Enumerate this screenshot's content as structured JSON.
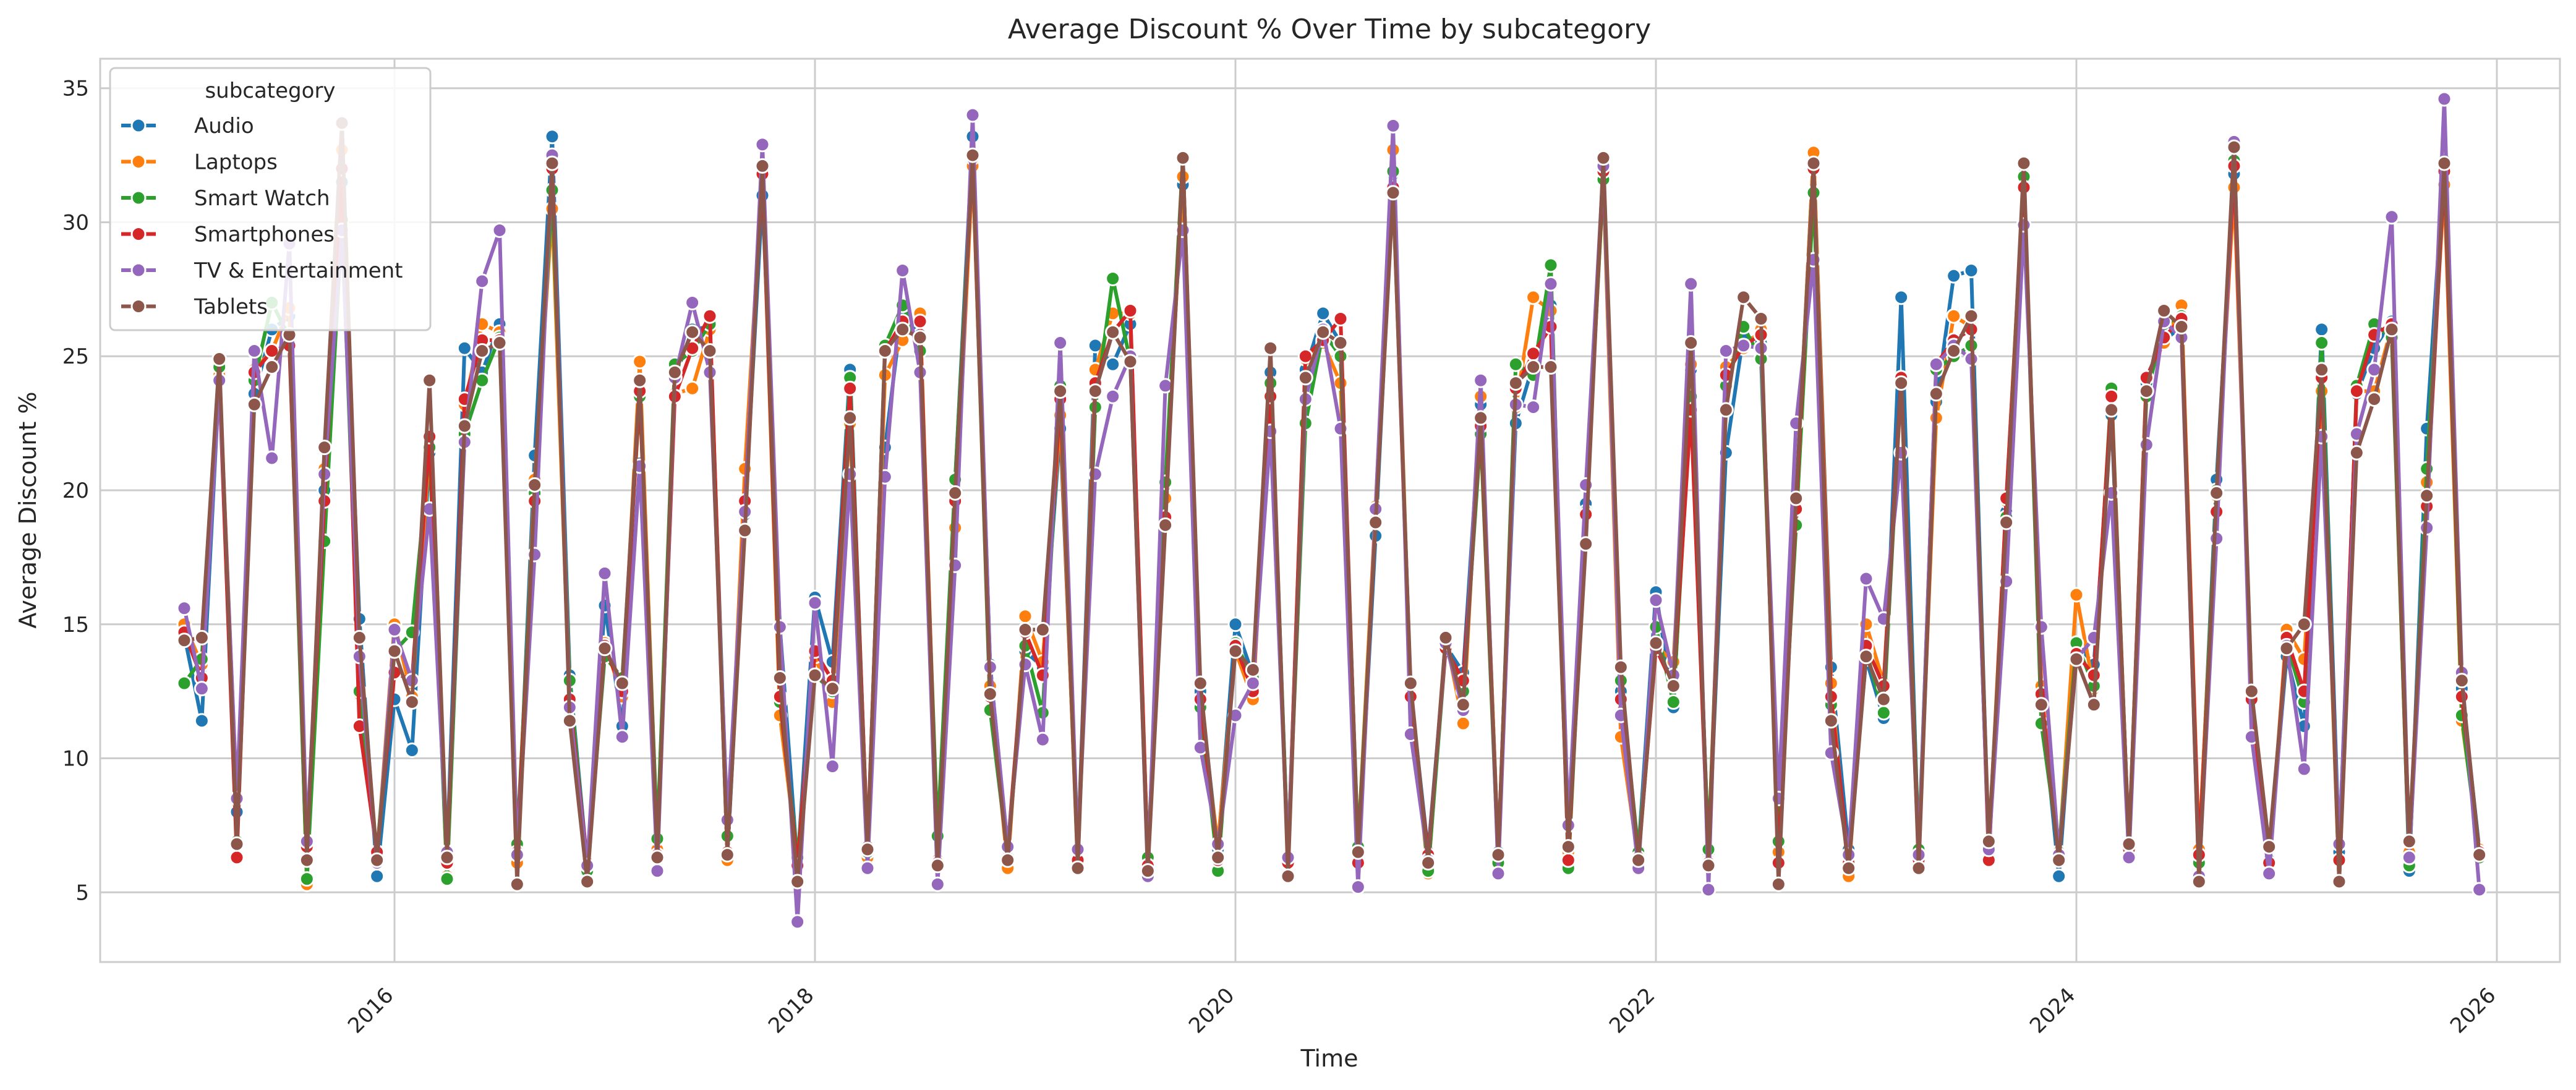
{
  "chart_data": {
    "type": "line",
    "title": "Average Discount % Over Time by subcategory",
    "xlabel": "Time",
    "ylabel": "Average Discount %",
    "xlim": [
      2014.6,
      2026.3
    ],
    "ylim": [
      2.4,
      36.1
    ],
    "x_ticks": [
      2016,
      2018,
      2020,
      2022,
      2024,
      2026
    ],
    "y_ticks": [
      5,
      10,
      15,
      20,
      25,
      30,
      35
    ],
    "grid": true,
    "legend": {
      "title": "subcategory",
      "position": "top-left"
    },
    "start_year": 2015,
    "series": [
      {
        "name": "Audio",
        "color": "#1f77b4",
        "values": [
          14.6,
          11.4,
          24.2,
          8.0,
          23.6,
          26.0,
          26.5,
          6.7,
          20.0,
          31.5,
          15.2,
          5.6,
          12.2,
          10.3,
          21.4,
          6.4,
          25.3,
          24.4,
          26.2,
          6.1,
          21.3,
          33.2,
          13.1,
          6.0,
          15.7,
          11.2,
          21.0,
          6.9,
          24.2,
          26.0,
          26.1,
          6.2,
          19.1,
          31.0,
          14.9,
          6.0,
          16.0,
          13.6,
          24.5,
          6.5,
          21.6,
          26.9,
          25.8,
          6.0,
          20.3,
          33.2,
          13.5,
          6.5,
          14.0,
          13.4,
          22.3,
          6.3,
          25.4,
          24.7,
          26.2,
          6.0,
          20.2,
          31.4,
          12.5,
          6.6,
          15.0,
          13.1,
          24.4,
          6.3,
          24.5,
          26.6,
          25.5,
          6.1,
          18.3,
          31.8,
          12.5,
          6.5,
          14.2,
          13.2,
          23.2,
          6.5,
          22.5,
          24.7,
          26.9,
          6.6,
          19.5,
          32.1,
          12.5,
          6.5,
          16.2,
          11.9,
          24.5,
          6.4,
          21.4,
          25.8,
          25.5,
          6.7,
          19.6,
          32.6,
          13.4,
          6.6,
          13.7,
          11.5,
          27.2,
          6.4,
          23.3,
          28.0,
          28.2,
          6.4,
          19.2,
          31.8,
          12.3,
          5.6,
          14.3,
          13.5,
          22.8,
          6.8,
          24.0,
          25.6,
          26.1,
          6.3,
          20.4,
          31.8,
          12.4,
          6.2,
          13.8,
          11.2,
          26.0,
          6.5,
          23.6,
          25.3,
          26.3,
          5.8,
          22.3,
          32.3,
          12.6,
          6.6
        ]
      },
      {
        "name": "Laptops",
        "color": "#ff7f0e",
        "values": [
          15.0,
          13.5,
          24.3,
          8.4,
          24.5,
          25.2,
          26.8,
          5.3,
          20.8,
          32.7,
          12.4,
          6.3,
          15.0,
          12.3,
          21.6,
          5.6,
          23.2,
          26.2,
          25.9,
          6.1,
          20.4,
          30.5,
          12.0,
          6.1,
          14.3,
          12.3,
          24.8,
          6.6,
          23.6,
          23.8,
          26.0,
          6.2,
          20.8,
          31.8,
          11.6,
          6.2,
          13.8,
          12.1,
          22.5,
          6.3,
          24.3,
          25.6,
          26.6,
          6.2,
          18.6,
          32.1,
          12.7,
          5.9,
          15.3,
          13.6,
          22.8,
          6.0,
          24.5,
          26.6,
          26.6,
          6.1,
          19.7,
          31.7,
          11.9,
          6.8,
          14.0,
          12.2,
          24.0,
          6.2,
          24.9,
          25.5,
          24.0,
          6.7,
          19.4,
          32.7,
          12.3,
          5.7,
          14.5,
          11.3,
          23.5,
          6.4,
          23.1,
          27.2,
          26.7,
          6.5,
          19.2,
          31.6,
          10.8,
          6.2,
          14.2,
          13.6,
          24.7,
          6.2,
          24.6,
          25.3,
          26.0,
          6.5,
          19.5,
          32.6,
          12.8,
          5.6,
          15.0,
          12.8,
          24.1,
          6.5,
          22.7,
          26.5,
          26.1,
          6.6,
          19.6,
          31.6,
          12.7,
          6.3,
          16.1,
          12.6,
          23.5,
          6.7,
          24.2,
          25.5,
          26.9,
          6.6,
          19.8,
          31.3,
          12.4,
          6.0,
          14.8,
          13.7,
          23.7,
          5.4,
          23.7,
          23.7,
          26.1,
          6.5,
          20.3,
          31.4,
          11.4,
          6.6
        ]
      },
      {
        "name": "Smart Watch",
        "color": "#2ca02c",
        "values": [
          12.8,
          13.7,
          24.6,
          6.9,
          24.1,
          27.0,
          25.7,
          5.5,
          18.1,
          30.1,
          12.5,
          6.5,
          14.0,
          14.7,
          21.6,
          5.5,
          22.1,
          24.1,
          25.7,
          6.8,
          19.9,
          31.2,
          12.9,
          5.8,
          13.8,
          13.0,
          23.5,
          7.0,
          24.7,
          25.2,
          26.2,
          7.1,
          19.5,
          32.0,
          12.1,
          6.3,
          13.1,
          12.5,
          24.2,
          6.5,
          25.4,
          26.9,
          25.2,
          7.1,
          20.4,
          32.5,
          11.8,
          6.4,
          14.2,
          11.7,
          23.9,
          6.5,
          23.1,
          27.9,
          24.8,
          6.3,
          20.3,
          32.4,
          11.9,
          5.8,
          14.3,
          13.0,
          24.0,
          6.3,
          22.5,
          25.9,
          25.0,
          6.7,
          18.8,
          31.9,
          12.4,
          5.8,
          14.1,
          12.5,
          22.1,
          6.1,
          24.7,
          24.3,
          28.4,
          5.9,
          19.2,
          31.6,
          12.9,
          6.5,
          14.9,
          12.1,
          23.5,
          6.6,
          23.9,
          26.1,
          24.9,
          6.9,
          18.7,
          31.1,
          12.0,
          6.1,
          14.0,
          11.7,
          24.2,
          6.6,
          24.5,
          25.0,
          25.4,
          6.5,
          19.0,
          31.7,
          11.3,
          6.5,
          14.3,
          12.7,
          23.8,
          6.5,
          23.5,
          26.2,
          26.5,
          6.1,
          20.0,
          32.3,
          12.3,
          6.0,
          14.3,
          12.1,
          25.5,
          5.4,
          23.9,
          26.2,
          25.7,
          6.0,
          20.8,
          32.2,
          11.6,
          6.3
        ]
      },
      {
        "name": "Smartphones",
        "color": "#d62728",
        "values": [
          14.7,
          13.0,
          24.1,
          6.3,
          24.4,
          25.2,
          25.4,
          6.7,
          19.6,
          32.0,
          11.2,
          6.5,
          13.2,
          12.9,
          22.0,
          6.1,
          23.4,
          25.6,
          25.6,
          6.5,
          19.6,
          32.0,
          12.2,
          6.1,
          14.2,
          12.5,
          23.7,
          6.4,
          23.5,
          25.3,
          26.5,
          6.5,
          19.6,
          31.8,
          12.3,
          6.0,
          14.0,
          12.9,
          23.8,
          6.7,
          25.2,
          26.3,
          26.3,
          6.1,
          19.6,
          32.4,
          12.3,
          6.6,
          14.7,
          13.1,
          23.4,
          6.2,
          24.0,
          25.9,
          26.7,
          6.0,
          19.0,
          32.4,
          12.2,
          6.2,
          14.2,
          12.5,
          23.5,
          6.1,
          25.0,
          25.6,
          26.4,
          6.1,
          18.9,
          31.3,
          12.3,
          6.4,
          14.1,
          12.9,
          22.4,
          6.4,
          23.8,
          25.1,
          26.1,
          6.2,
          19.1,
          31.9,
          12.2,
          6.3,
          14.1,
          12.7,
          23.0,
          6.1,
          24.3,
          25.4,
          25.8,
          6.1,
          19.3,
          32.0,
          12.3,
          6.1,
          14.2,
          12.7,
          24.2,
          6.2,
          24.7,
          25.6,
          26.0,
          6.2,
          19.7,
          31.3,
          12.4,
          6.3,
          13.9,
          13.1,
          23.5,
          6.6,
          24.2,
          25.7,
          26.4,
          6.4,
          19.2,
          32.1,
          12.2,
          6.1,
          14.5,
          12.5,
          24.2,
          6.2,
          23.7,
          25.8,
          26.2,
          6.3,
          19.4,
          31.9,
          12.3,
          6.5
        ]
      },
      {
        "name": "TV & Entertainment",
        "color": "#9467bd",
        "values": [
          15.6,
          12.6,
          24.1,
          8.5,
          25.2,
          21.2,
          29.2,
          6.9,
          20.6,
          29.7,
          13.8,
          6.1,
          14.8,
          12.9,
          19.3,
          6.5,
          21.8,
          27.8,
          29.7,
          6.4,
          17.6,
          32.5,
          11.9,
          6.0,
          16.9,
          10.8,
          20.9,
          5.8,
          24.2,
          27.0,
          24.4,
          7.7,
          19.2,
          32.9,
          14.9,
          3.9,
          15.8,
          9.7,
          20.6,
          5.9,
          20.5,
          28.2,
          24.4,
          5.3,
          17.2,
          34.0,
          13.4,
          6.7,
          13.5,
          10.7,
          25.5,
          6.6,
          20.6,
          23.5,
          25.0,
          5.6,
          23.9,
          29.7,
          10.4,
          6.8,
          11.6,
          12.8,
          22.2,
          6.3,
          23.4,
          26.0,
          22.3,
          5.2,
          19.3,
          33.6,
          10.9,
          6.2,
          14.3,
          11.8,
          24.1,
          5.7,
          23.2,
          23.1,
          27.7,
          7.5,
          20.2,
          32.1,
          11.6,
          5.9,
          15.9,
          13.1,
          27.7,
          5.1,
          25.2,
          25.4,
          25.3,
          8.5,
          22.5,
          28.6,
          10.2,
          6.4,
          16.7,
          15.2,
          21.4,
          6.4,
          24.7,
          25.4,
          24.9,
          6.6,
          16.6,
          29.9,
          14.9,
          6.4,
          13.7,
          14.5,
          19.9,
          6.3,
          21.7,
          26.3,
          25.7,
          5.6,
          18.2,
          33.0,
          10.8,
          5.7,
          14.2,
          9.6,
          22.0,
          6.8,
          22.1,
          24.5,
          30.2,
          6.3,
          18.6,
          34.6,
          13.2,
          5.1
        ]
      },
      {
        "name": "Tablets",
        "color": "#8c564b",
        "values": [
          14.4,
          14.5,
          24.9,
          6.8,
          23.2,
          24.6,
          25.8,
          6.2,
          21.6,
          33.7,
          14.5,
          6.2,
          14.0,
          12.1,
          24.1,
          6.3,
          22.4,
          25.2,
          25.5,
          5.3,
          20.2,
          32.2,
          11.4,
          5.4,
          14.1,
          12.8,
          24.1,
          6.3,
          24.4,
          25.9,
          25.2,
          6.4,
          18.5,
          32.1,
          13.0,
          5.4,
          13.1,
          12.6,
          22.7,
          6.6,
          25.2,
          26.0,
          25.7,
          6.0,
          19.9,
          32.5,
          12.4,
          6.2,
          14.8,
          14.8,
          23.7,
          5.9,
          23.7,
          25.9,
          24.8,
          5.8,
          18.7,
          32.4,
          12.8,
          6.3,
          14.0,
          13.3,
          25.3,
          5.6,
          24.2,
          25.9,
          25.5,
          6.5,
          18.8,
          31.1,
          12.8,
          6.1,
          14.5,
          12.0,
          22.7,
          6.4,
          24.0,
          24.6,
          24.6,
          6.7,
          18.0,
          32.4,
          13.4,
          6.2,
          14.3,
          12.7,
          25.5,
          6.0,
          23.0,
          27.2,
          26.4,
          5.3,
          19.7,
          32.2,
          11.4,
          5.9,
          13.8,
          12.2,
          24.0,
          5.9,
          23.6,
          25.2,
          26.5,
          6.9,
          18.8,
          32.2,
          12.0,
          6.2,
          13.7,
          12.0,
          23.0,
          6.8,
          23.7,
          26.7,
          26.1,
          5.4,
          19.9,
          32.8,
          12.5,
          6.7,
          14.1,
          15.0,
          24.5,
          5.4,
          21.4,
          23.4,
          26.0,
          6.9,
          19.8,
          32.2,
          12.9,
          6.4
        ]
      }
    ]
  }
}
